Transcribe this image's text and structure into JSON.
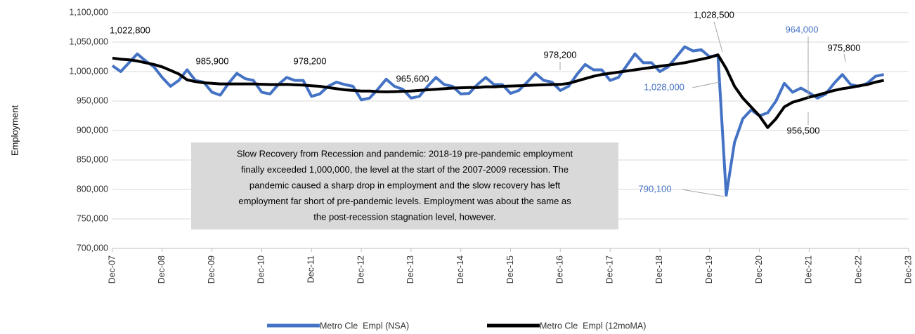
{
  "chart_data": {
    "type": "line",
    "y_label": "Employment",
    "x": [
      "Dec-07",
      "Feb-08",
      "Apr-08",
      "Jun-08",
      "Aug-08",
      "Oct-08",
      "Dec-08",
      "Feb-09",
      "Apr-09",
      "Jun-09",
      "Aug-09",
      "Oct-09",
      "Dec-09",
      "Feb-10",
      "Apr-10",
      "Jun-10",
      "Aug-10",
      "Oct-10",
      "Dec-10",
      "Feb-11",
      "Apr-11",
      "Jun-11",
      "Aug-11",
      "Oct-11",
      "Dec-11",
      "Feb-12",
      "Apr-12",
      "Jun-12",
      "Aug-12",
      "Oct-12",
      "Dec-12",
      "Feb-13",
      "Apr-13",
      "Jun-13",
      "Aug-13",
      "Oct-13",
      "Dec-13",
      "Feb-14",
      "Apr-14",
      "Jun-14",
      "Aug-14",
      "Oct-14",
      "Dec-14",
      "Feb-15",
      "Apr-15",
      "Jun-15",
      "Aug-15",
      "Oct-15",
      "Dec-15",
      "Feb-16",
      "Apr-16",
      "Jun-16",
      "Aug-16",
      "Oct-16",
      "Dec-16",
      "Feb-17",
      "Apr-17",
      "Jun-17",
      "Aug-17",
      "Oct-17",
      "Dec-17",
      "Feb-18",
      "Apr-18",
      "Jun-18",
      "Aug-18",
      "Oct-18",
      "Dec-18",
      "Feb-19",
      "Apr-19",
      "Jun-19",
      "Aug-19",
      "Oct-19",
      "Dec-19",
      "Feb-20",
      "Apr-20",
      "Jun-20",
      "Aug-20",
      "Oct-20",
      "Dec-20",
      "Feb-21",
      "Apr-21",
      "Jun-21",
      "Aug-21",
      "Oct-21",
      "Dec-21",
      "Feb-22",
      "Apr-22",
      "Jun-22",
      "Aug-22",
      "Oct-22",
      "Dec-22",
      "Feb-23",
      "Apr-23",
      "Jun-23"
    ],
    "series": [
      {
        "name": "Metro Cle  Empl (NSA)",
        "color": "#4472c4",
        "width": 4,
        "values": [
          1010000,
          1000000,
          1015000,
          1030000,
          1018000,
          1008000,
          990000,
          975000,
          985000,
          1003000,
          985000,
          982000,
          965000,
          960000,
          980000,
          997000,
          988000,
          985000,
          965000,
          962000,
          978000,
          990000,
          985000,
          985000,
          958000,
          962000,
          975000,
          982000,
          978000,
          975000,
          952000,
          955000,
          970000,
          987000,
          975000,
          970000,
          955000,
          958000,
          975000,
          990000,
          978000,
          975000,
          962000,
          963000,
          978000,
          990000,
          978000,
          978000,
          963000,
          968000,
          982000,
          997000,
          985000,
          982000,
          968000,
          975000,
          995000,
          1012000,
          1003000,
          1003000,
          985000,
          990000,
          1010000,
          1030000,
          1015000,
          1015000,
          1000000,
          1008000,
          1025000,
          1042000,
          1035000,
          1037000,
          1025000,
          1028000,
          790100,
          880000,
          920000,
          935000,
          925000,
          930000,
          950000,
          980000,
          965000,
          972000,
          964000,
          955000,
          962000,
          980000,
          995000,
          978000,
          975000,
          980000,
          992000,
          995000
        ]
      },
      {
        "name": "Metro Cle  Empl (12moMA)",
        "color": "#000000",
        "width": 4,
        "values": [
          1022800,
          1021000,
          1020000,
          1018000,
          1015000,
          1012000,
          1008000,
          1002000,
          996000,
          985900,
          983000,
          981000,
          980000,
          979000,
          979000,
          979000,
          979000,
          979000,
          978500,
          978000,
          978000,
          978200,
          977500,
          977000,
          976000,
          975000,
          973000,
          971000,
          969000,
          968000,
          967000,
          967000,
          966000,
          965600,
          966000,
          966500,
          967000,
          968000,
          969000,
          970000,
          971000,
          972000,
          972500,
          973000,
          973000,
          974000,
          974000,
          975000,
          975500,
          976000,
          976500,
          977000,
          977500,
          978000,
          978200,
          980000,
          984000,
          988000,
          992000,
          995000,
          997000,
          999000,
          1001000,
          1003000,
          1005000,
          1007000,
          1009000,
          1011000,
          1013000,
          1015000,
          1018000,
          1021000,
          1024000,
          1028500,
          1005000,
          975000,
          955000,
          940000,
          925000,
          905000,
          920000,
          940000,
          948000,
          952000,
          956500,
          960000,
          964000,
          968000,
          971000,
          973000,
          975800,
          978000,
          982000,
          985000
        ]
      }
    ],
    "xticks": [
      "Dec-07",
      "Dec-08",
      "Dec-09",
      "Dec-10",
      "Dec-11",
      "Dec-12",
      "Dec-13",
      "Dec-14",
      "Dec-15",
      "Dec-16",
      "Dec-17",
      "Dec-18",
      "Dec-19",
      "Dec-20",
      "Dec-21",
      "Dec-22",
      "Dec-23"
    ],
    "ylim": [
      700000,
      1100000
    ],
    "yticks": [
      {
        "value": 700000,
        "label": "700,000"
      },
      {
        "value": 750000,
        "label": "750,000"
      },
      {
        "value": 800000,
        "label": "800,000"
      },
      {
        "value": 850000,
        "label": "850,000"
      },
      {
        "value": 900000,
        "label": "900,000"
      },
      {
        "value": 950000,
        "label": "950,000"
      },
      {
        "value": 1000000,
        "label": "1,000,000"
      },
      {
        "value": 1050000,
        "label": "1,050,000"
      },
      {
        "value": 1100000,
        "label": "1,100,000"
      }
    ],
    "grid": true,
    "legend": "bottom",
    "annotations": [
      {
        "text": "1,022,800",
        "color": "#000000"
      },
      {
        "text": "985,900",
        "color": "#000000"
      },
      {
        "text": "978,200",
        "color": "#000000"
      },
      {
        "text": "965,600",
        "color": "#000000"
      },
      {
        "text": "978,200",
        "color": "#000000"
      },
      {
        "text": "1,028,500",
        "color": "#000000"
      },
      {
        "text": "1,028,000",
        "color": "#4472c4"
      },
      {
        "text": "790,100",
        "color": "#4472c4"
      },
      {
        "text": "964,000",
        "color": "#4472c4"
      },
      {
        "text": "956,500",
        "color": "#000000"
      },
      {
        "text": "975,800",
        "color": "#000000"
      }
    ],
    "note": [
      "Slow Recovery from Recession and pandemic: 2018-19 pre-pandemic employment",
      "finally exceeded 1,000,000, the level at the start of the 2007-2009 recession. The",
      "pandemic caused a sharp drop in employment and the slow recovery has left",
      "employment far short of pre-pandemic levels. Employment was about the same as",
      "the post-recession stagnation level, however."
    ]
  }
}
